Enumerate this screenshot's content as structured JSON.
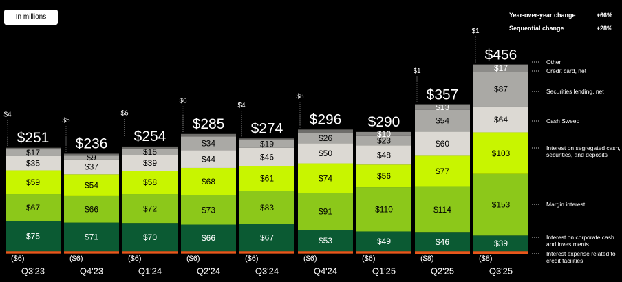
{
  "chart_data": {
    "type": "bar",
    "stacked": true,
    "unit_note": "In millions",
    "annotations": [
      {
        "label": "Year-over-year change",
        "value_label": "+66%"
      },
      {
        "label": "Sequential change",
        "value_label": "+28%"
      }
    ],
    "categories": [
      "Q3'23",
      "Q4'23",
      "Q1'24",
      "Q2'24",
      "Q3'24",
      "Q4'24",
      "Q1'25",
      "Q2'25",
      "Q3'25"
    ],
    "ylim": [
      -10,
      470
    ],
    "totals": [
      251,
      236,
      254,
      285,
      274,
      296,
      290,
      357,
      456
    ],
    "total_labels": [
      "$251",
      "$236",
      "$254",
      "$285",
      "$274",
      "$296",
      "$290",
      "$357",
      "$456"
    ],
    "series": [
      {
        "name": "Interest expense related to credit facilities",
        "color": "#e8571b",
        "label_color": "#ffffff",
        "values": [
          -6,
          -6,
          -6,
          -6,
          -6,
          -6,
          -6,
          -8,
          -8
        ],
        "value_labels": [
          "($6)",
          "($6)",
          "($6)",
          "($6)",
          "($6)",
          "($6)",
          "($6)",
          "($8)",
          "($8)"
        ]
      },
      {
        "name": "Interest on corporate cash and investments",
        "color": "#0b5a33",
        "label_color": "#ffffff",
        "values": [
          75,
          71,
          70,
          66,
          67,
          53,
          49,
          46,
          39
        ],
        "value_labels": [
          "$75",
          "$71",
          "$70",
          "$66",
          "$67",
          "$53",
          "$49",
          "$46",
          "$39"
        ]
      },
      {
        "name": "Margin interest",
        "color": "#8cc81a",
        "label_color": "#000000",
        "values": [
          67,
          66,
          72,
          73,
          83,
          91,
          110,
          114,
          153
        ],
        "value_labels": [
          "$67",
          "$66",
          "$72",
          "$73",
          "$83",
          "$91",
          "$110",
          "$114",
          "$153"
        ]
      },
      {
        "name": "Interest on segregated cash, securities, and deposits",
        "color": "#c8f500",
        "label_color": "#000000",
        "values": [
          59,
          54,
          58,
          68,
          61,
          74,
          56,
          77,
          103
        ],
        "value_labels": [
          "$59",
          "$54",
          "$58",
          "$68",
          "$61",
          "$74",
          "$56",
          "$77",
          "$103"
        ]
      },
      {
        "name": "Cash Sweep",
        "color": "#dcd9d3",
        "label_color": "#000000",
        "values": [
          35,
          37,
          39,
          44,
          46,
          50,
          48,
          60,
          64
        ],
        "value_labels": [
          "$35",
          "$37",
          "$39",
          "$44",
          "$46",
          "$50",
          "$48",
          "$60",
          "$64"
        ]
      },
      {
        "name": "Securities lending, net",
        "color": "#aaa9a5",
        "label_color": "#000000",
        "values": [
          17,
          9,
          15,
          34,
          19,
          26,
          23,
          54,
          87
        ],
        "value_labels": [
          "$17",
          "$9",
          "$15",
          "$34",
          "$19",
          "$26",
          "$23",
          "$54",
          "$87"
        ]
      },
      {
        "name": "Credit card, net",
        "color": "#8c8b88",
        "label_color": "#ffffff",
        "values": [
          null,
          null,
          null,
          null,
          null,
          null,
          10,
          13,
          17
        ],
        "value_labels": [
          null,
          null,
          null,
          null,
          null,
          null,
          "$10",
          "$13",
          "$17"
        ]
      },
      {
        "name": "Other",
        "color": "#6e6d6a",
        "label_color": "#ffffff",
        "values": [
          4,
          5,
          6,
          6,
          4,
          8,
          null,
          1,
          1
        ],
        "value_labels": [
          "$4",
          "$5",
          "$6",
          "$6",
          "$4",
          "$8",
          null,
          "$1",
          "$1"
        ]
      }
    ]
  }
}
